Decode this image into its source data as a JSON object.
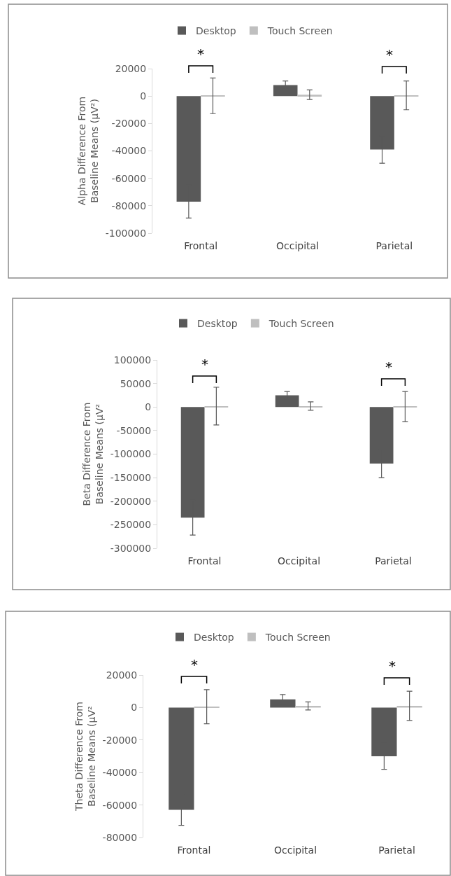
{
  "chart_data": [
    {
      "type": "bar",
      "ylabel": "Alpha Difference From Baseline Means (µV²)",
      "categories": [
        "Frontal",
        "Occipital",
        "Parietal"
      ],
      "series": [
        {
          "name": "Desktop",
          "color": "#595959",
          "values": [
            -77000,
            8000,
            -39000
          ],
          "errors": [
            12000,
            3000,
            10000
          ]
        },
        {
          "name": "Touch Screen",
          "color": "#bfbfbf",
          "values": [
            200,
            1000,
            500
          ],
          "errors": [
            13000,
            3500,
            10500
          ]
        }
      ],
      "ylim": [
        -100000,
        20000
      ],
      "yticks": [
        -100000,
        -80000,
        -60000,
        -40000,
        -20000,
        0,
        20000
      ],
      "grid": false,
      "legend": "top",
      "annotations": [
        "*",
        "*"
      ]
    },
    {
      "type": "bar",
      "ylabel": "Beta Difference From Baseline Means (µV²",
      "categories": [
        "Frontal",
        "Occipital",
        "Parietal"
      ],
      "series": [
        {
          "name": "Desktop",
          "color": "#595959",
          "values": [
            -235000,
            25000,
            -120000
          ],
          "errors": [
            37000,
            8000,
            30000
          ]
        },
        {
          "name": "Touch Screen",
          "color": "#bfbfbf",
          "values": [
            2000,
            2000,
            1000
          ],
          "errors": [
            40000,
            9000,
            32000
          ]
        }
      ],
      "ylim": [
        -300000,
        100000
      ],
      "yticks": [
        -300000,
        -250000,
        -200000,
        -150000,
        -100000,
        -50000,
        0,
        50000,
        100000
      ],
      "grid": false,
      "legend": "top",
      "annotations": [
        "*",
        "*"
      ]
    },
    {
      "type": "bar",
      "ylabel": "Theta Difference From Baseline Means (µV²",
      "categories": [
        "Frontal",
        "Occipital",
        "Parietal"
      ],
      "series": [
        {
          "name": "Desktop",
          "color": "#595959",
          "values": [
            -63000,
            5000,
            -30000
          ],
          "errors": [
            9500,
            3000,
            8000
          ]
        },
        {
          "name": "Touch Screen",
          "color": "#bfbfbf",
          "values": [
            500,
            1000,
            1000
          ],
          "errors": [
            10500,
            2500,
            9000
          ]
        }
      ],
      "ylim": [
        -80000,
        20000
      ],
      "yticks": [
        -80000,
        -60000,
        -40000,
        -20000,
        0,
        20000
      ],
      "grid": false,
      "legend": "top",
      "annotations": [
        "*",
        "*"
      ]
    }
  ]
}
